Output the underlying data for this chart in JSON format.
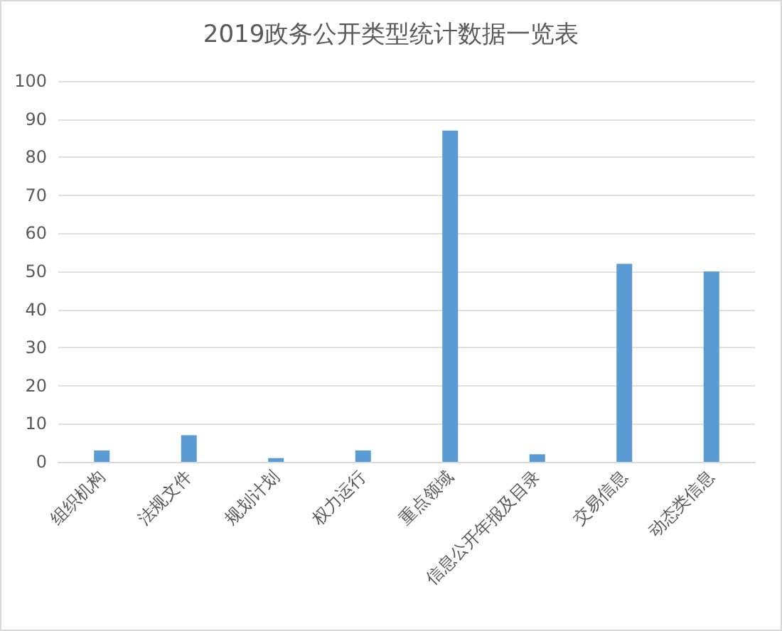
{
  "chart_data": {
    "type": "bar",
    "title": "2019政务公开类型统计数据一览表",
    "categories": [
      "组织机构",
      "法规文件",
      "规划计划",
      "权力运行",
      "重点领域",
      "信息公开年报及目录",
      "交易信息",
      "动态类信息"
    ],
    "values": [
      3,
      7,
      1,
      3,
      87,
      2,
      52,
      50
    ],
    "color": "#5b9bd5",
    "ylim": [
      0,
      100
    ],
    "yticks": [
      0,
      10,
      20,
      30,
      40,
      50,
      60,
      70,
      80,
      90,
      100
    ],
    "grid": "y"
  }
}
